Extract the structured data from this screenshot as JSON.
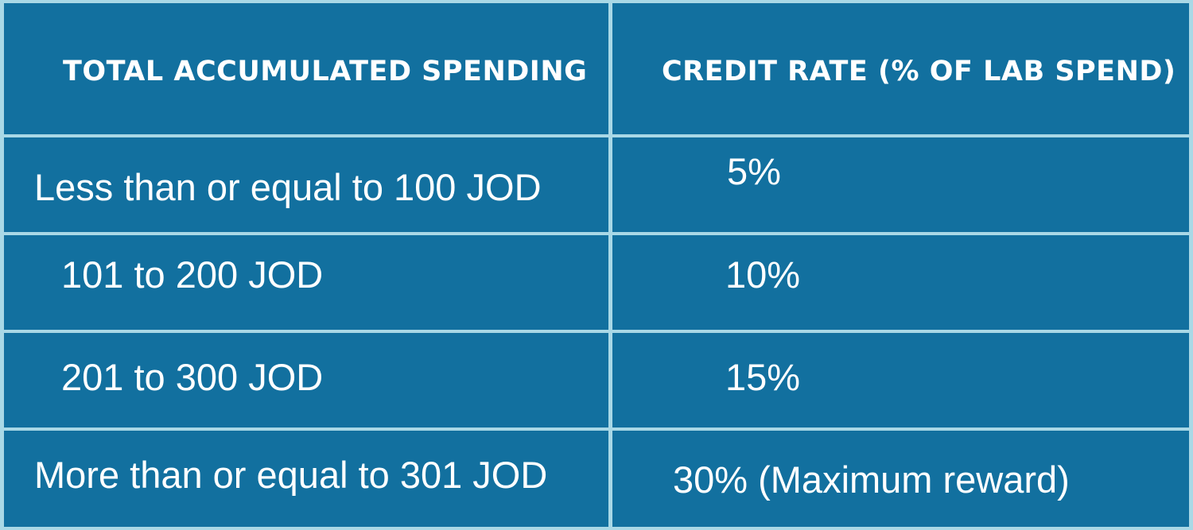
{
  "colors": {
    "cell_background": "#12709f",
    "grid_line": "#a9d8e6",
    "text": "#ffffff"
  },
  "table": {
    "headers": [
      "TOTAL ACCUMULATED SPENDING",
      "CREDIT RATE (% OF LAB SPEND)"
    ],
    "rows": [
      {
        "spending": "Less than or equal to 100 JOD",
        "rate": "5%"
      },
      {
        "spending": "101 to 200 JOD",
        "rate": "10%"
      },
      {
        "spending": "201 to 300 JOD",
        "rate": "15%"
      },
      {
        "spending": "More than or equal to 301 JOD",
        "rate": "30% (Maximum reward)"
      }
    ]
  }
}
